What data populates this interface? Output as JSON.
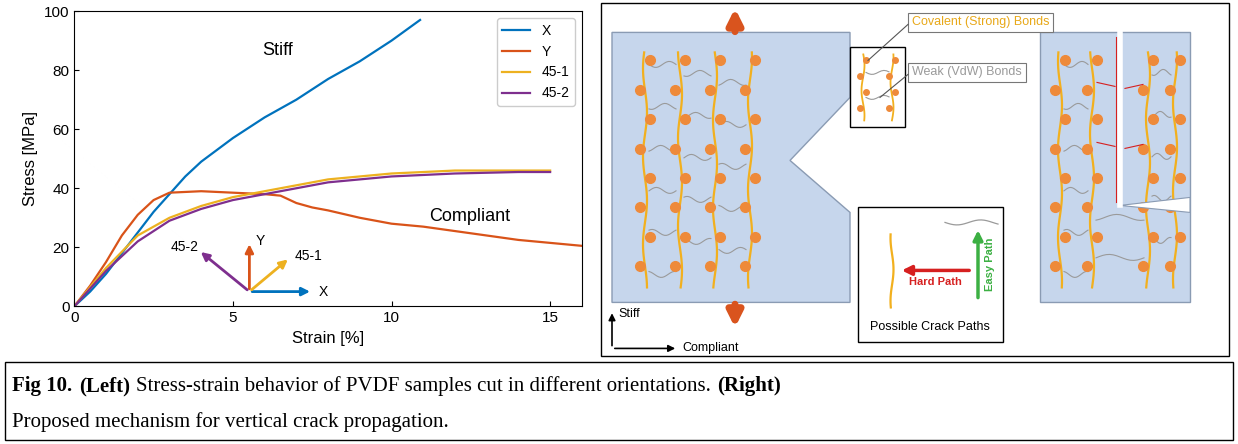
{
  "chart_data": {
    "type": "line",
    "xlabel": "Strain [%]",
    "ylabel": "Stress [MPa]",
    "xlim": [
      0,
      16
    ],
    "xticks": [
      0,
      5,
      10,
      15
    ],
    "ylim": [
      0,
      100
    ],
    "yticks": [
      0,
      20,
      40,
      60,
      80,
      100
    ],
    "legend": "upper right",
    "annotations": [
      "Stiff",
      "Compliant"
    ],
    "series": [
      {
        "name": "X",
        "color": "#0072BD",
        "x": [
          0,
          0.5,
          1,
          1.5,
          2,
          2.5,
          3,
          3.5,
          4,
          4.5,
          5,
          6,
          7,
          8,
          9,
          10,
          10.9
        ],
        "values": [
          0,
          5,
          11,
          18,
          25,
          32,
          38,
          44,
          49,
          53,
          57,
          64,
          70,
          77,
          83,
          90,
          97
        ]
      },
      {
        "name": "Y",
        "color": "#D95319",
        "x": [
          0,
          0.5,
          1,
          1.5,
          2,
          2.5,
          3,
          4,
          5,
          6,
          6.5,
          7,
          7.5,
          8,
          9,
          10,
          11,
          12,
          13,
          14,
          15,
          16
        ],
        "values": [
          0,
          7,
          15,
          24,
          31,
          36,
          38.5,
          39,
          38.5,
          38,
          37.5,
          35,
          33.5,
          32.5,
          30,
          28,
          27,
          25.5,
          24,
          22.5,
          21.5,
          20.5
        ]
      },
      {
        "name": "45-1",
        "color": "#EDB120",
        "x": [
          0,
          1,
          2,
          3,
          4,
          5,
          6,
          7,
          8,
          9,
          10,
          11,
          12,
          13,
          14,
          15
        ],
        "values": [
          0,
          13,
          24,
          30,
          34,
          37,
          39,
          41,
          43,
          44,
          45,
          45.5,
          46,
          46,
          46,
          46
        ]
      },
      {
        "name": "45-2",
        "color": "#7E2F8E",
        "x": [
          0,
          1,
          2,
          3,
          4,
          5,
          6,
          7,
          8,
          9,
          10,
          12,
          14,
          15
        ],
        "values": [
          0,
          12,
          22,
          29,
          33,
          36,
          38,
          40,
          42,
          43,
          44,
          45,
          45.5,
          45.5
        ]
      }
    ]
  },
  "diagram": {
    "directions": {
      "stiff": "Stiff",
      "compliant": "Compliant"
    },
    "inset_labels": {
      "strong": "Covalent (Strong) Bonds",
      "weak": "Weak (VdW) Bonds"
    },
    "crack_paths": {
      "title": "Possible Crack Paths",
      "easy": "Easy Path",
      "hard": "Hard Path"
    }
  },
  "caption": {
    "lines": [
      [
        {
          "text": "Fig 10.",
          "bold": true
        },
        {
          "text": "(Left)",
          "bold": true
        },
        {
          "text": "Stress-strain behavior of PVDF samples cut in different orientations.",
          "bold": false
        },
        {
          "text": "(Right)",
          "bold": true
        }
      ],
      [
        {
          "text": "Proposed mechanism for vertical crack propagation.",
          "bold": false
        }
      ]
    ]
  }
}
